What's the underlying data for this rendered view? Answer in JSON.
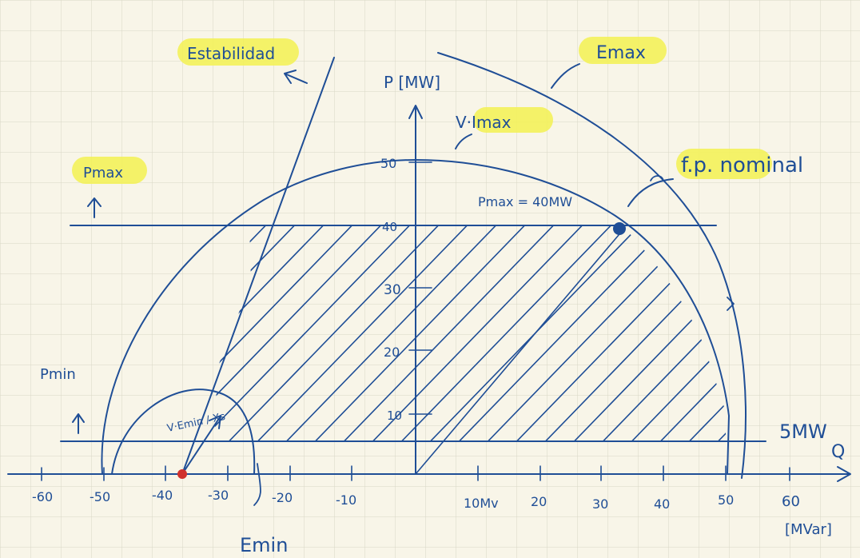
{
  "diagram": {
    "axes": {
      "y_label": "P [MW]",
      "x_label": "Q",
      "x_unit": "[MVar]",
      "x_ticks": [
        "-60",
        "-50",
        "-40",
        "-30",
        "-20",
        "-10",
        "10Mv",
        "20",
        "30",
        "40",
        "50",
        "60"
      ],
      "y_ticks": [
        "50",
        "40",
        "30",
        "20",
        "10"
      ]
    },
    "labels": {
      "estabilidad": "Estabilidad",
      "emax": "Emax",
      "v_imax": "V·Imax",
      "pmax": "Pmax",
      "fp_nominal": "f.p. nominal",
      "pmax_value": "Pmax = 40MW",
      "pmin": "Pmin",
      "pmin_value": "5MW",
      "emin": "Emin",
      "v_emin": "V·Emin / Xs"
    },
    "colors": {
      "ink": "#1f4e96",
      "highlight": "#f3f25a",
      "grid": "#d9d6c6",
      "background": "#f8f5e8",
      "point": "#d0312d"
    }
  }
}
